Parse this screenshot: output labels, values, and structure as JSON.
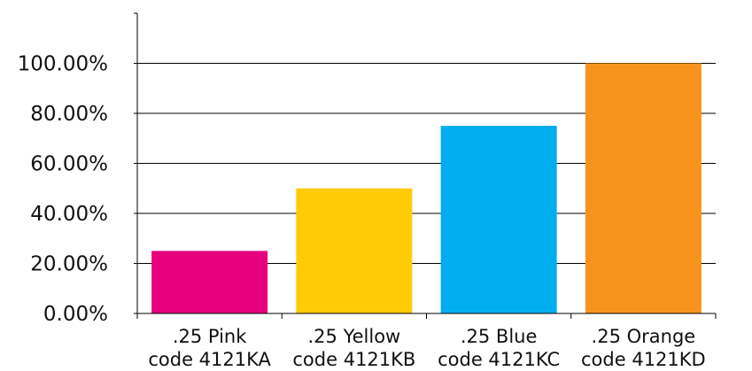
{
  "chart_data": {
    "type": "bar",
    "categories": [
      {
        "line1": ".25 Pink",
        "line2": "code 4121KA"
      },
      {
        "line1": ".25 Yellow",
        "line2": "code 4121KB"
      },
      {
        "line1": ".25 Blue",
        "line2": "code 4121KC"
      },
      {
        "line1": ".25 Orange",
        "line2": "code 4121KD"
      }
    ],
    "values": [
      25,
      50,
      75,
      100
    ],
    "colors": [
      "#e6007e",
      "#ffcb05",
      "#00aeef",
      "#f7941d"
    ],
    "y_ticks": [
      {
        "value": 0,
        "label": "0.00%"
      },
      {
        "value": 20,
        "label": "20.00%"
      },
      {
        "value": 40,
        "label": "40.00%"
      },
      {
        "value": 60,
        "label": "60.00%"
      },
      {
        "value": 80,
        "label": "80.00%"
      },
      {
        "value": 100,
        "label": "100.00%"
      }
    ],
    "ylim": [
      0,
      120
    ],
    "grid": true,
    "legend": "none",
    "title": "",
    "xlabel": "",
    "ylabel": ""
  }
}
